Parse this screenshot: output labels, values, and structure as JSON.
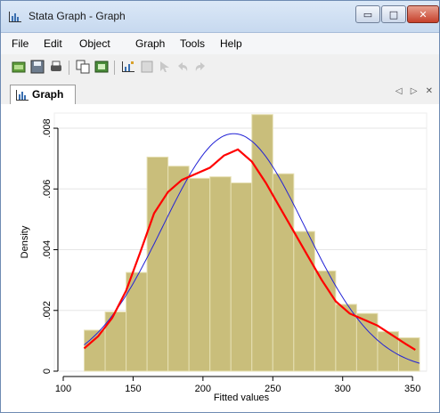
{
  "window": {
    "title": "Stata Graph - Graph",
    "buttons": {
      "minimize": "▭",
      "maximize": "□",
      "close": "✕"
    }
  },
  "menu": [
    "File",
    "Edit",
    "Object",
    "Graph",
    "Tools",
    "Help"
  ],
  "toolbar_icons": [
    "open-icon",
    "save-icon",
    "print-icon",
    "copy-icon",
    "rename-icon",
    "graph-editor-icon",
    "edit-disabled-icon",
    "pointer-disabled-icon",
    "undo-disabled-icon",
    "redo-disabled-icon"
  ],
  "tab": {
    "label": "Graph",
    "controls": "◁ ▷ ✕"
  },
  "colors": {
    "bars": "#c9be7b",
    "bar_edge": "#e6e0b4",
    "kernel": "#ff0000",
    "normal": "#2323d6",
    "axis": "#000000",
    "grid": "#e6e6e6"
  },
  "chart_data": {
    "type": "bar",
    "xlabel": "Fitted values",
    "ylabel": "Density",
    "xlim": [
      100,
      355
    ],
    "ylim": [
      0,
      0.0085
    ],
    "xticks": [
      "100",
      "150",
      "200",
      "250",
      "300",
      "350"
    ],
    "yticks": [
      "0",
      ".002",
      ".004",
      ".006",
      ".008"
    ],
    "bins": [
      {
        "x0": 115,
        "x1": 130,
        "value": 0.00135
      },
      {
        "x0": 130,
        "x1": 145,
        "value": 0.00195
      },
      {
        "x0": 145,
        "x1": 160,
        "value": 0.00325
      },
      {
        "x0": 160,
        "x1": 175,
        "value": 0.00705
      },
      {
        "x0": 175,
        "x1": 190,
        "value": 0.00675
      },
      {
        "x0": 190,
        "x1": 205,
        "value": 0.00635
      },
      {
        "x0": 205,
        "x1": 220,
        "value": 0.0064
      },
      {
        "x0": 220,
        "x1": 235,
        "value": 0.0062
      },
      {
        "x0": 235,
        "x1": 250,
        "value": 0.00845
      },
      {
        "x0": 250,
        "x1": 265,
        "value": 0.0065
      },
      {
        "x0": 265,
        "x1": 280,
        "value": 0.0046
      },
      {
        "x0": 280,
        "x1": 295,
        "value": 0.0033
      },
      {
        "x0": 295,
        "x1": 310,
        "value": 0.0022
      },
      {
        "x0": 310,
        "x1": 325,
        "value": 0.0019
      },
      {
        "x0": 325,
        "x1": 340,
        "value": 0.0013
      },
      {
        "x0": 340,
        "x1": 355,
        "value": 0.0011
      }
    ],
    "kernel_density": {
      "x": [
        115,
        125,
        135,
        145,
        155,
        165,
        175,
        185,
        195,
        205,
        215,
        225,
        235,
        245,
        255,
        265,
        275,
        285,
        295,
        305,
        315,
        325,
        335,
        345,
        352
      ],
      "y": [
        0.00075,
        0.00115,
        0.00175,
        0.00265,
        0.0039,
        0.0052,
        0.0059,
        0.0063,
        0.0065,
        0.0067,
        0.0071,
        0.0073,
        0.0069,
        0.0062,
        0.0054,
        0.0046,
        0.0038,
        0.003,
        0.0023,
        0.0019,
        0.0017,
        0.0015,
        0.0012,
        0.0009,
        0.0007
      ]
    },
    "normal_density": {
      "mean": 222,
      "sd": 51
    }
  }
}
